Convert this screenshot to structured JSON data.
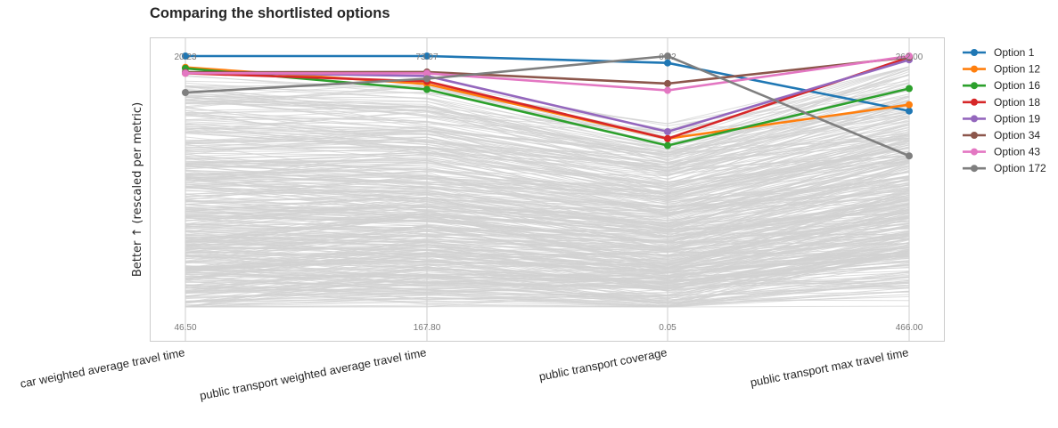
{
  "chart_data": {
    "type": "parallel-coordinates",
    "title": "Comparing the shortlisted options",
    "ylabel": "Better ↑ (rescaled per metric)",
    "grid": false,
    "legend_position": "right, outside",
    "axes": [
      {
        "name": "car weighted average travel time",
        "top_label": "20.23",
        "bottom_label": "46.50",
        "best": 20.23,
        "worst": 46.5
      },
      {
        "name": "public transport weighted average travel time",
        "top_label": "73.07",
        "bottom_label": "167.80",
        "best": 73.07,
        "worst": 167.8
      },
      {
        "name": "public transport coverage",
        "top_label": "0.42",
        "bottom_label": "0.05",
        "best": 0.42,
        "worst": 0.05
      },
      {
        "name": "public transport max travel time",
        "top_label": "262.00",
        "bottom_label": "466.00",
        "best": 262.0,
        "worst": 466.0
      }
    ],
    "background_color": "#d3d3d3",
    "series": [
      {
        "name": "Option 1",
        "color": "#1f77b4",
        "values": [
          20.23,
          73.07,
          0.41,
          306.0
        ]
      },
      {
        "name": "Option 12",
        "color": "#ff7f0e",
        "values": [
          21.4,
          83.5,
          0.3,
          301.0
        ]
      },
      {
        "name": "Option 16",
        "color": "#2ca02c",
        "values": [
          21.5,
          85.5,
          0.29,
          288.0
        ]
      },
      {
        "name": "Option 18",
        "color": "#d62728",
        "values": [
          22.0,
          82.5,
          0.3,
          263.0
        ]
      },
      {
        "name": "Option 19",
        "color": "#9467bd",
        "values": [
          21.9,
          80.5,
          0.31,
          265.0
        ]
      },
      {
        "name": "Option 34",
        "color": "#8c564b",
        "values": [
          21.9,
          79.0,
          0.38,
          263.0
        ]
      },
      {
        "name": "Option 43",
        "color": "#e377c2",
        "values": [
          22.0,
          79.5,
          0.37,
          262.0
        ]
      },
      {
        "name": "Option 172",
        "color": "#7f7f7f",
        "values": [
          24.0,
          81.5,
          0.42,
          342.0
        ]
      }
    ]
  }
}
